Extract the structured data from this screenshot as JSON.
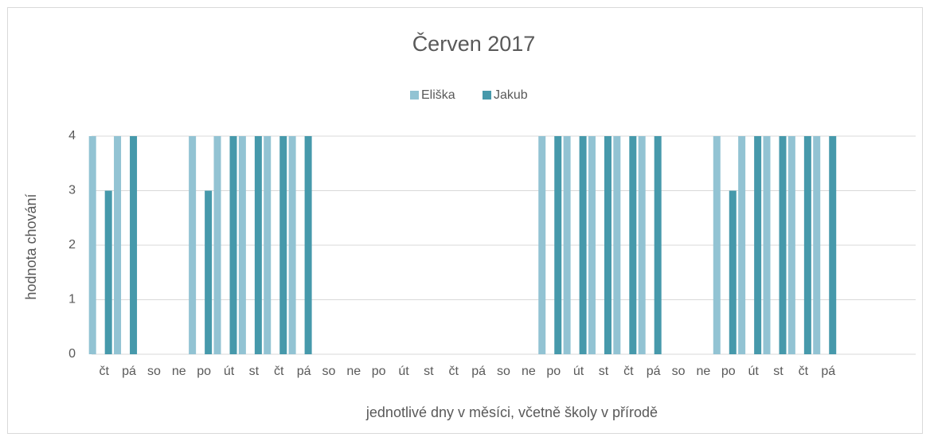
{
  "chart_data": {
    "type": "bar",
    "title": "Červen 2017",
    "x_label": "jednotlivé dny v měsíci, včetně školy v přírodě",
    "y_label": "hodnota chování",
    "categories": [
      "čt",
      "pá",
      "so",
      "ne",
      "po",
      "út",
      "st",
      "čt",
      "pá",
      "so",
      "ne",
      "po",
      "út",
      "st",
      "čt",
      "pá",
      "so",
      "ne",
      "po",
      "út",
      "st",
      "čt",
      "pá",
      "so",
      "ne",
      "po",
      "út",
      "st",
      "čt",
      "pá",
      null,
      null,
      null
    ],
    "series": [
      {
        "name": "Eliška",
        "color": "#92c3d3",
        "values": [
          4,
          4,
          null,
          null,
          4,
          4,
          4,
          4,
          4,
          null,
          null,
          null,
          null,
          null,
          null,
          null,
          null,
          null,
          4,
          4,
          4,
          4,
          4,
          null,
          null,
          4,
          4,
          4,
          4,
          4,
          null,
          null,
          null
        ]
      },
      {
        "name": "Jakub",
        "color": "#4699ab",
        "values": [
          3,
          4,
          null,
          null,
          3,
          4,
          4,
          4,
          4,
          null,
          null,
          null,
          null,
          null,
          null,
          null,
          null,
          null,
          4,
          4,
          4,
          4,
          4,
          null,
          null,
          3,
          4,
          4,
          4,
          4,
          null,
          null,
          null
        ]
      }
    ],
    "ylim": [
      0,
      4
    ],
    "yticks": [
      0,
      1,
      2,
      3,
      4
    ],
    "grid": true,
    "legend": "top"
  }
}
